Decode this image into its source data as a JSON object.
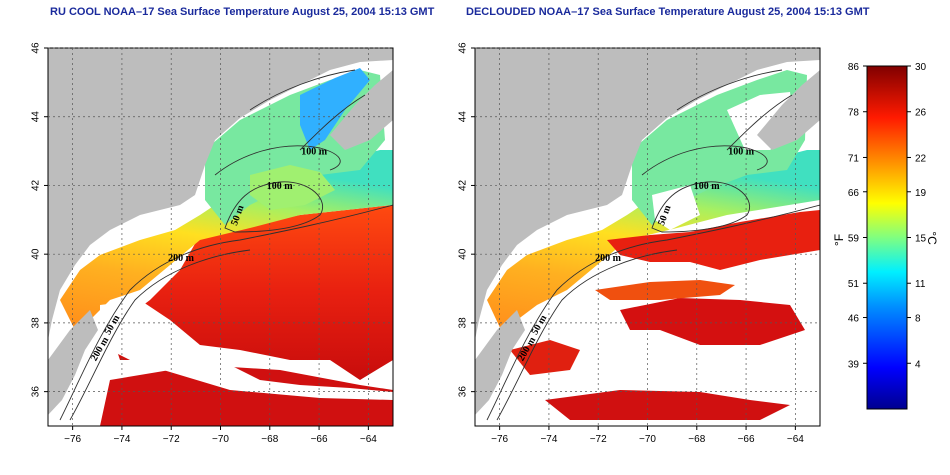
{
  "chart_data": [
    {
      "type": "heatmap",
      "title": "RU COOL NOAA–17 Sea Surface Temperature August 25, 2004 15:13 GMT",
      "xlim": [
        -77,
        -63
      ],
      "ylim": [
        35,
        46
      ],
      "xticks": [
        -76,
        -74,
        -72,
        -70,
        -68,
        -66,
        -64
      ],
      "yticks": [
        36,
        38,
        40,
        42,
        44,
        46
      ],
      "grid": "dotted",
      "contour_labels": [
        "100 m",
        "100 m",
        "50 m",
        "200 m",
        "50 m",
        "200 m"
      ],
      "colors": {
        "land": "#bdbdbd",
        "cloud": "#ffffff"
      }
    },
    {
      "type": "heatmap",
      "title": "DECLOUDED NOAA–17 Sea Surface Temperature August 25, 2004 15:13 GMT",
      "xlim": [
        -77,
        -63
      ],
      "ylim": [
        35,
        46
      ],
      "xticks": [
        -76,
        -74,
        -72,
        -70,
        -68,
        -66,
        -64
      ],
      "yticks": [
        36,
        38,
        40,
        42,
        44,
        46
      ],
      "grid": "dotted",
      "contour_labels": [
        "100 m",
        "100 m",
        "50 m",
        "200 m",
        "50 m",
        "200 m"
      ],
      "colors": {
        "land": "#bdbdbd",
        "cloud": "#ffffff"
      }
    }
  ],
  "colorbar": {
    "celsius_range": [
      0,
      30
    ],
    "celsius_ticks": [
      30,
      26,
      22,
      19,
      15,
      11,
      8,
      4
    ],
    "fahrenheit_ticks": [
      86,
      78,
      71,
      66,
      59,
      51,
      46,
      39
    ],
    "celsius_label": "°C",
    "fahrenheit_label": "°F",
    "stops": [
      "#00008f",
      "#0000ff",
      "#0080ff",
      "#00ffff",
      "#80ff80",
      "#ffff00",
      "#ff8000",
      "#ff0000",
      "#800000"
    ]
  }
}
